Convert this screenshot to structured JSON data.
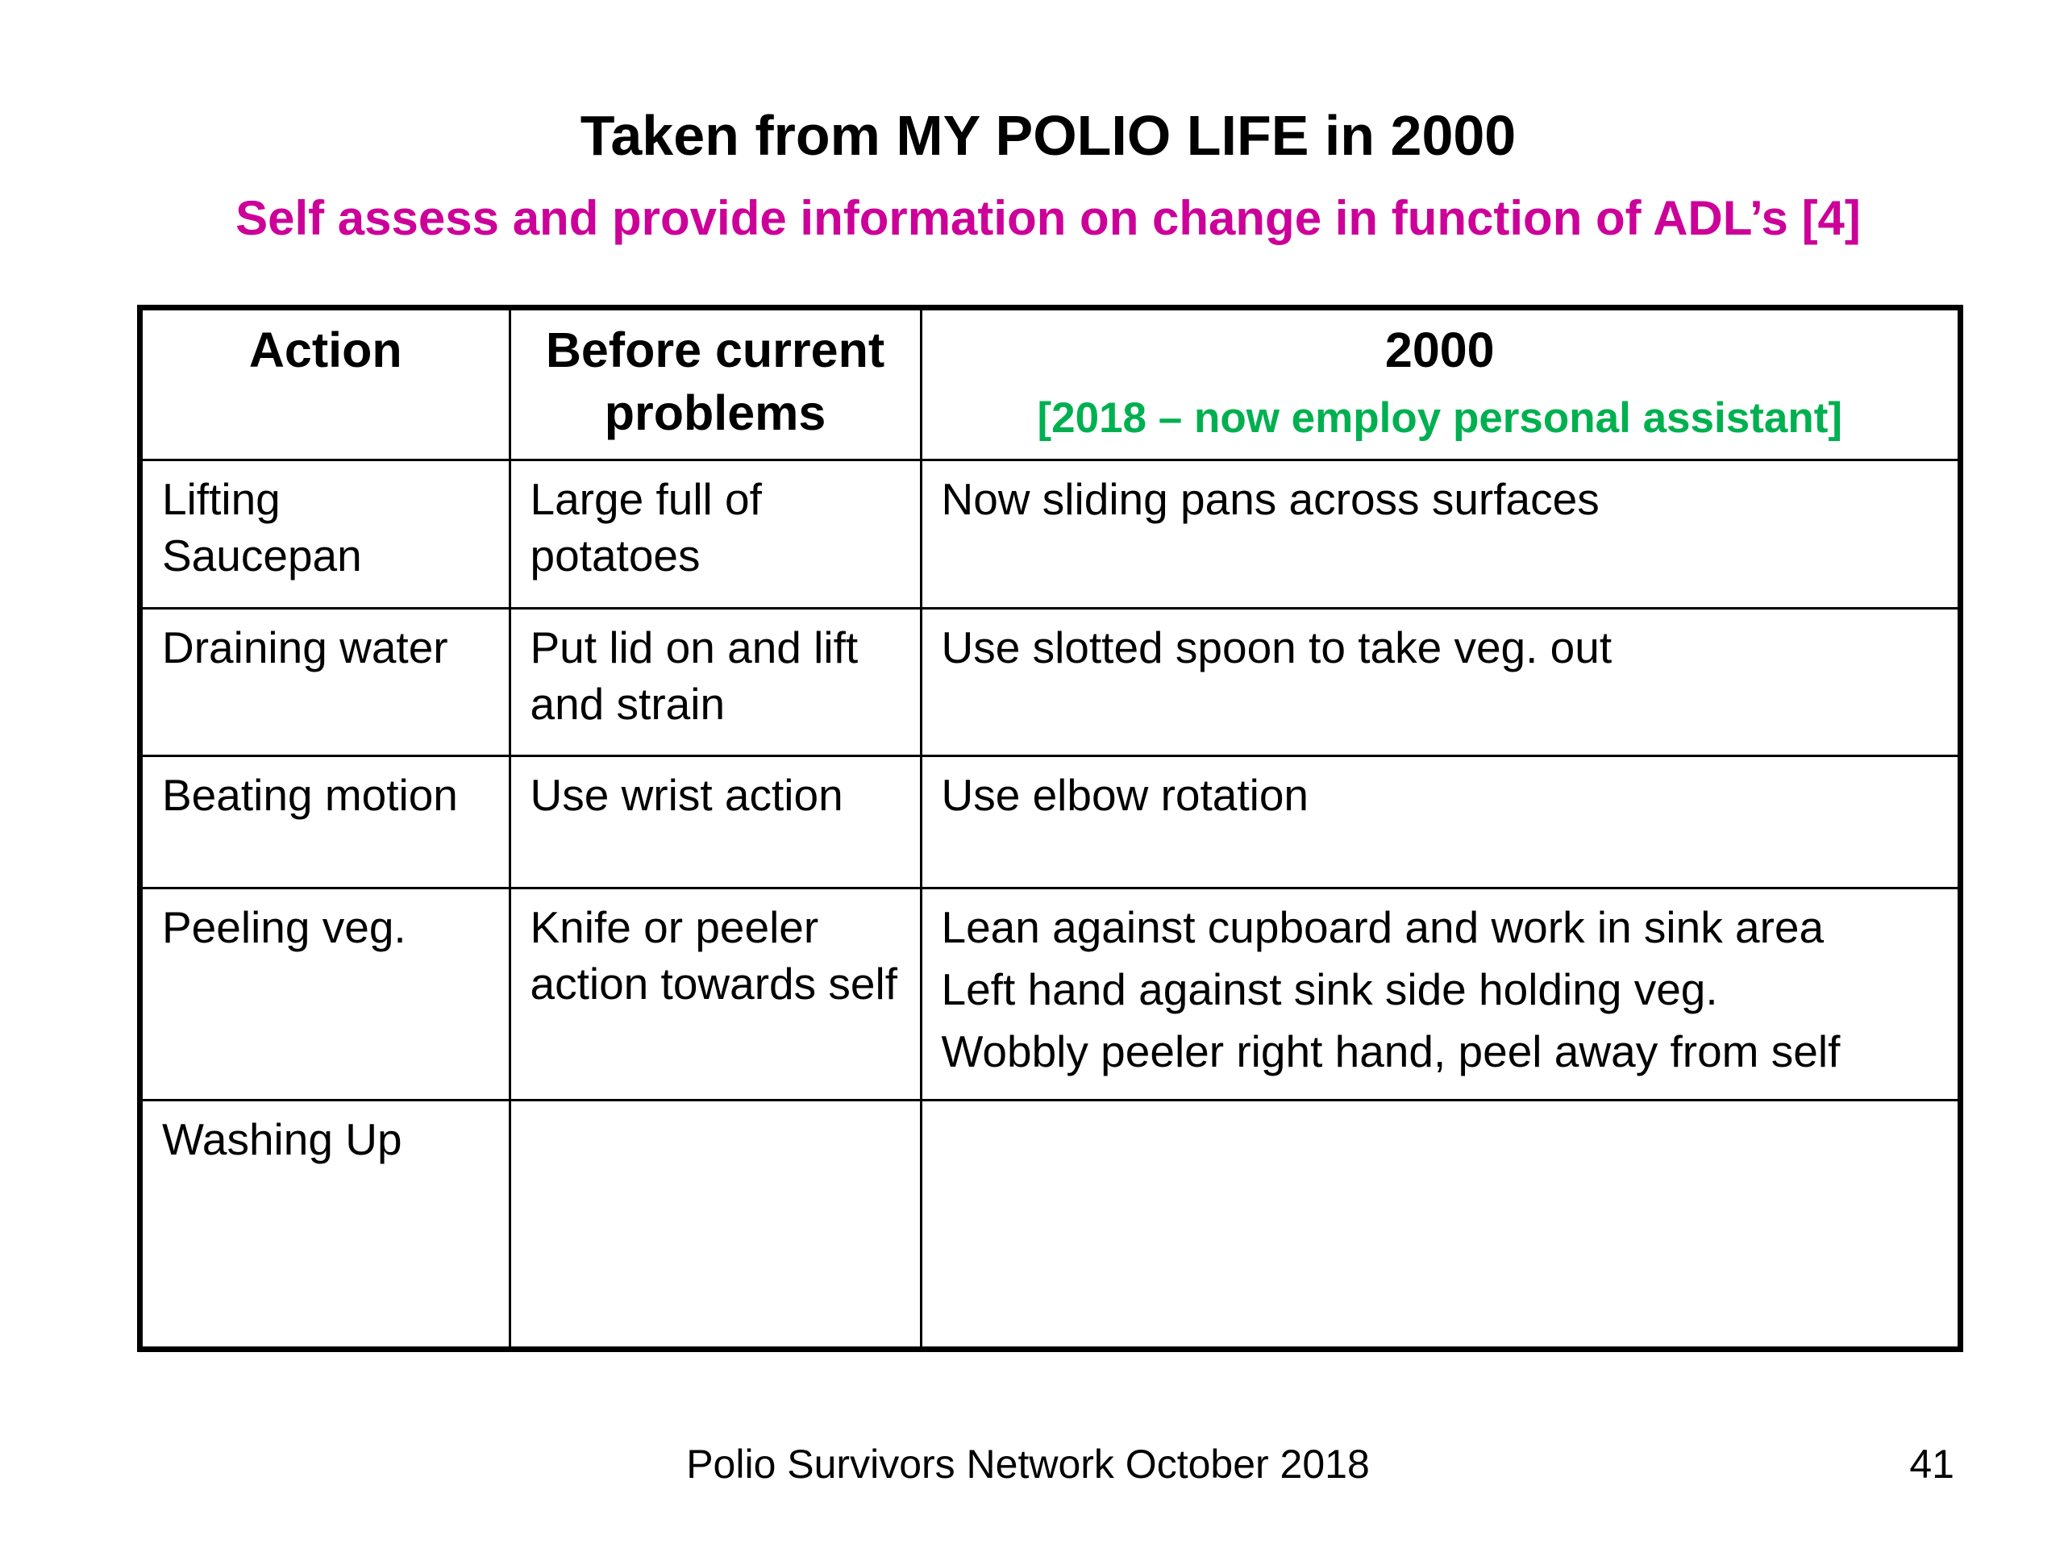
{
  "slide": {
    "title": "Taken from MY POLIO LIFE in 2000",
    "subtitle": "Self assess and provide information on change in function of ADL’s [4]"
  },
  "table": {
    "headers": {
      "action": "Action",
      "before": "Before current problems",
      "year": "2000",
      "year_note": "[2018 – now employ personal assistant]"
    },
    "rows": [
      {
        "action": "Lifting Saucepan",
        "before": "Large full of potatoes",
        "after": [
          "Now sliding pans across surfaces"
        ]
      },
      {
        "action": "Draining water",
        "before": "Put lid on and lift and strain",
        "after": [
          "Use slotted spoon to take veg. out"
        ]
      },
      {
        "action": "Beating motion",
        "before": "Use wrist action",
        "after": [
          "Use elbow rotation"
        ]
      },
      {
        "action": "Peeling veg.",
        "before": "Knife or peeler action towards self",
        "after": [
          "Lean against cupboard and work in sink area",
          "Left hand against sink side holding veg.",
          "Wobbly peeler right hand, peel away from self"
        ]
      },
      {
        "action": "Washing Up",
        "before": "",
        "after": []
      }
    ]
  },
  "footer": {
    "text": "Polio Survivors Network October 2018",
    "page_number": "41"
  },
  "colors": {
    "subtitle": "#cc0099",
    "header_note": "#00b050"
  }
}
